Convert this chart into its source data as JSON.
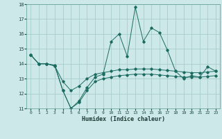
{
  "title": "",
  "xlabel": "Humidex (Indice chaleur)",
  "xlim": [
    -0.5,
    23.5
  ],
  "ylim": [
    11,
    18
  ],
  "yticks": [
    11,
    12,
    13,
    14,
    15,
    16,
    17,
    18
  ],
  "xticks": [
    0,
    1,
    2,
    3,
    4,
    5,
    6,
    7,
    8,
    9,
    10,
    11,
    12,
    13,
    14,
    15,
    16,
    17,
    18,
    19,
    20,
    21,
    22,
    23
  ],
  "bg_color": "#cce8e8",
  "grid_color": "#aacccc",
  "line_color": "#1a6b60",
  "series1": [
    14.6,
    14.0,
    14.0,
    13.9,
    12.2,
    11.0,
    11.5,
    12.4,
    13.1,
    13.3,
    15.5,
    16.0,
    14.5,
    17.8,
    15.5,
    16.4,
    16.1,
    14.9,
    13.5,
    13.0,
    13.2,
    13.1,
    13.8,
    13.5
  ],
  "series2": [
    14.6,
    14.0,
    14.0,
    13.85,
    12.8,
    12.2,
    12.5,
    13.0,
    13.3,
    13.4,
    13.5,
    13.6,
    13.6,
    13.65,
    13.65,
    13.65,
    13.6,
    13.55,
    13.5,
    13.45,
    13.4,
    13.4,
    13.45,
    13.5
  ],
  "series3": [
    14.6,
    14.0,
    14.0,
    13.85,
    12.2,
    11.0,
    11.4,
    12.2,
    12.8,
    13.0,
    13.1,
    13.2,
    13.25,
    13.3,
    13.3,
    13.3,
    13.25,
    13.2,
    13.15,
    13.1,
    13.1,
    13.1,
    13.15,
    13.2
  ]
}
